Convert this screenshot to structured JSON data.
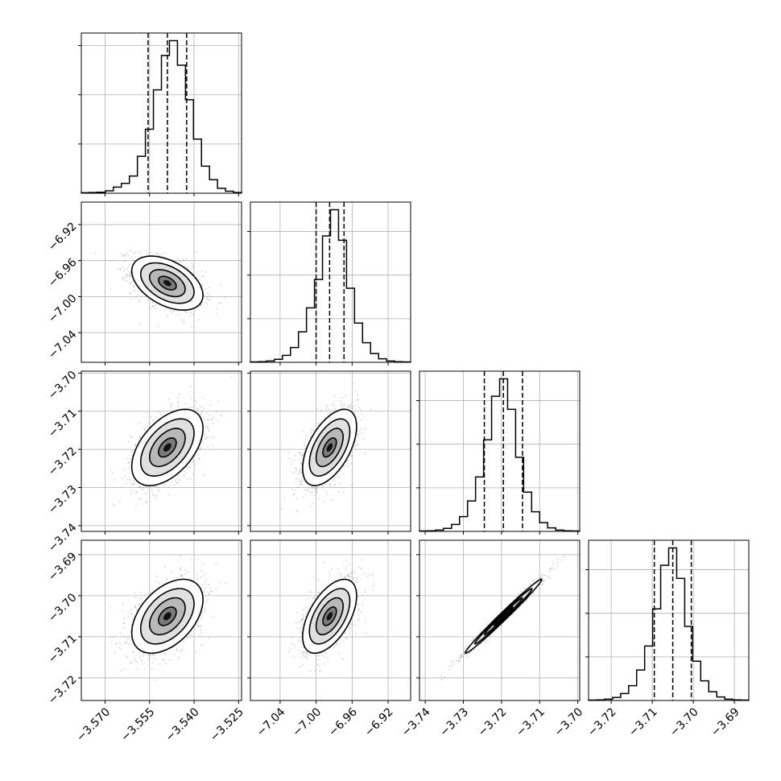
{
  "chart_data": {
    "type": "corner",
    "grid": true,
    "colors": {
      "line": "#000000",
      "points": "#808080",
      "grid": "#b0b0b0",
      "background": "#ffffff"
    },
    "parameters": [
      {
        "range": [
          -3.578,
          -3.524
        ],
        "median": -3.549,
        "q16": -3.5555,
        "q84": -3.5425,
        "ticks": [
          -3.57,
          -3.555,
          -3.54,
          -3.525
        ],
        "tick_labels": [
          "−3.570",
          "−3.555",
          "−3.540",
          "−3.525"
        ],
        "histogram": {
          "start": -3.578,
          "bin_width": 0.0027,
          "counts": [
            2,
            3,
            4,
            10,
            25,
            40,
            70,
            150,
            260,
            420,
            560,
            620,
            520,
            380,
            220,
            110,
            55,
            20,
            8,
            3
          ]
        }
      },
      {
        "range": [
          -7.073,
          -6.895
        ],
        "median": -6.985,
        "q16": -7.0,
        "q84": -6.969,
        "ticks": [
          -7.04,
          -7.0,
          -6.96,
          -6.92
        ],
        "ylabel_ticks": [
          -6.92,
          -6.96,
          -7.0,
          -7.04
        ],
        "tick_labels": [
          "−7.04",
          "−7.00",
          "−6.96",
          "−6.92"
        ],
        "histogram": {
          "start": -7.073,
          "bin_width": 0.0089,
          "counts": [
            2,
            3,
            6,
            14,
            32,
            68,
            140,
            250,
            380,
            580,
            700,
            560,
            340,
            180,
            90,
            40,
            16,
            6,
            3,
            2
          ]
        }
      },
      {
        "range": [
          -3.7415,
          -3.6995
        ],
        "median": -3.7195,
        "q16": -3.7245,
        "q84": -3.7145,
        "ticks": [
          -3.74,
          -3.73,
          -3.72,
          -3.71,
          -3.7
        ],
        "tick_labels": [
          "−3.74",
          "−3.73",
          "−3.72",
          "−3.71",
          "−3.70"
        ],
        "histogram": {
          "start": -3.7415,
          "bin_width": 0.0021,
          "counts": [
            2,
            3,
            6,
            14,
            32,
            68,
            140,
            250,
            420,
            620,
            700,
            560,
            340,
            180,
            90,
            40,
            16,
            6,
            3,
            2
          ]
        }
      },
      {
        "range": [
          -3.7255,
          -3.6865
        ],
        "median": -3.705,
        "q16": -3.7095,
        "q84": -3.7005,
        "ticks": [
          -3.72,
          -3.71,
          -3.7,
          -3.69
        ],
        "ylabel_ticks": [
          -3.69,
          -3.7,
          -3.71,
          -3.72
        ],
        "tick_labels": [
          "−3.72",
          "−3.71",
          "−3.70",
          "−3.69"
        ],
        "histogram": {
          "start": -3.7255,
          "bin_width": 0.00195,
          "counts": [
            2,
            3,
            6,
            14,
            32,
            68,
            140,
            250,
            420,
            620,
            700,
            560,
            340,
            180,
            90,
            40,
            16,
            6,
            3,
            2
          ]
        }
      }
    ],
    "scatter_panels": [
      {
        "row": 1,
        "col": 0,
        "center": [
          -3.549,
          -6.985
        ],
        "sd": [
          0.006,
          0.015
        ],
        "corr": -0.45
      },
      {
        "row": 2,
        "col": 0,
        "center": [
          -3.549,
          -3.7195
        ],
        "sd": [
          0.006,
          0.005
        ],
        "corr": 0.5
      },
      {
        "row": 2,
        "col": 1,
        "center": [
          -6.985,
          -3.7195
        ],
        "sd": [
          0.015,
          0.005
        ],
        "corr": 0.55
      },
      {
        "row": 3,
        "col": 0,
        "center": [
          -3.549,
          -3.705
        ],
        "sd": [
          0.006,
          0.0045
        ],
        "corr": 0.45
      },
      {
        "row": 3,
        "col": 1,
        "center": [
          -6.985,
          -3.705
        ],
        "sd": [
          0.015,
          0.0045
        ],
        "corr": 0.55
      },
      {
        "row": 3,
        "col": 2,
        "center": [
          -3.7195,
          -3.705
        ],
        "sd": [
          0.005,
          0.0045
        ],
        "corr": 0.99
      }
    ]
  }
}
